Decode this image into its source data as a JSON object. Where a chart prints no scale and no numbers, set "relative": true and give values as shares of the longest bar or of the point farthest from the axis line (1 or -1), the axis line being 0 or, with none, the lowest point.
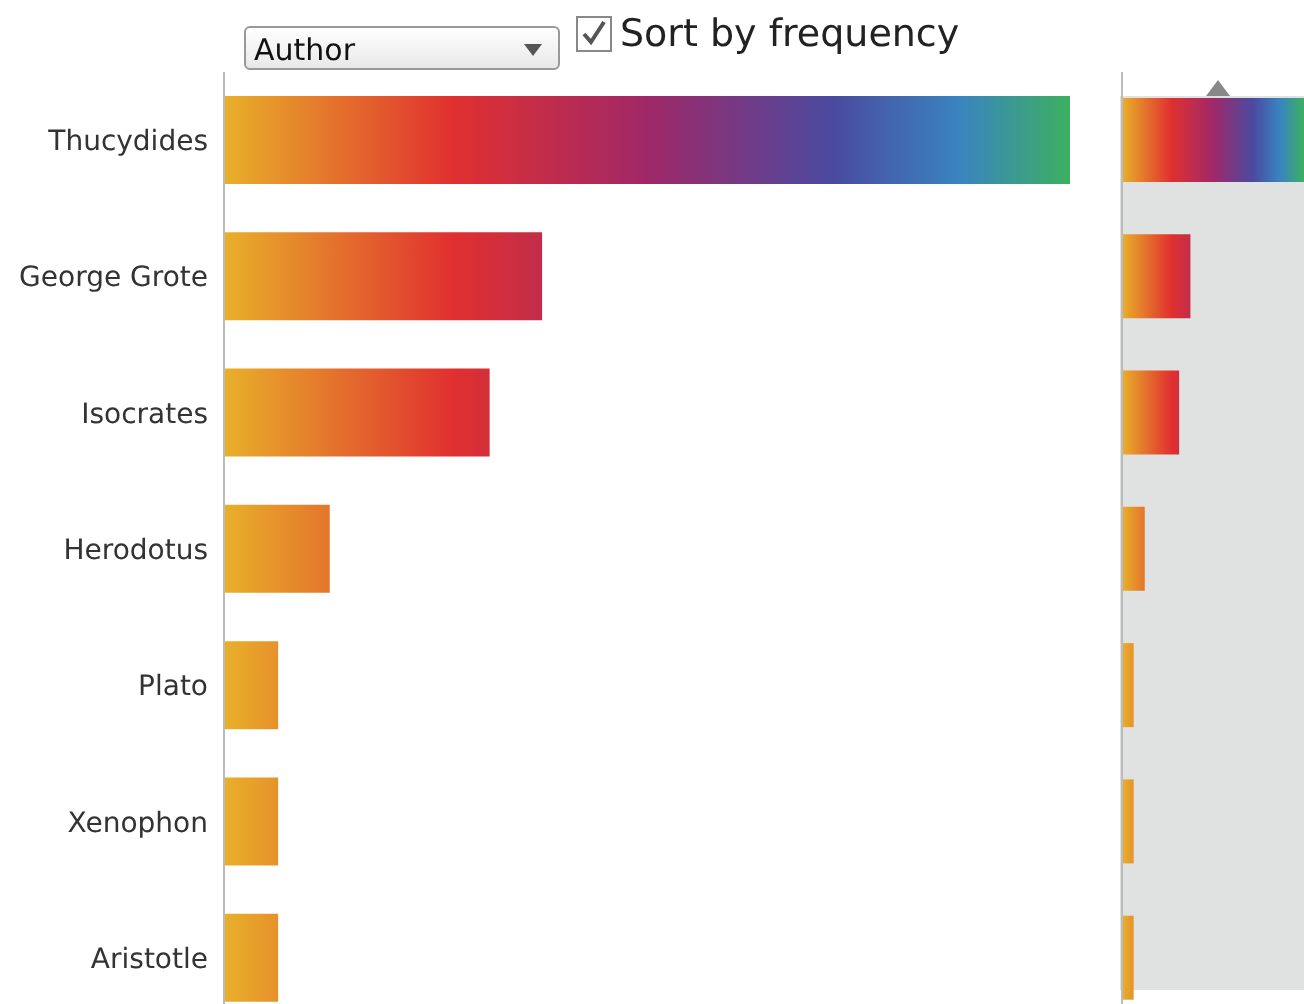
{
  "chart_data": [
    {
      "type": "bar",
      "orientation": "horizontal",
      "relative": true,
      "categories": [
        "Thucydides",
        "George Grote",
        "Isocrates",
        "Herodotus",
        "Plato",
        "Xenophon",
        "Aristotle"
      ],
      "values": [
        1,
        0.376,
        0.314,
        0.125,
        0.064,
        0.064,
        0.064
      ],
      "color": "#e8b02a",
      "annotations": [
        "Author",
        "Sort by frequency"
      ]
    },
    {
      "type": "bar",
      "orientation": "horizontal",
      "relative": true,
      "categories": [
        null,
        null,
        null,
        null,
        null,
        null,
        null
      ],
      "values": [
        1,
        0.376,
        0.314,
        0.125,
        0.064,
        0.064,
        0.064
      ],
      "color": "#e8b02a"
    }
  ]
}
